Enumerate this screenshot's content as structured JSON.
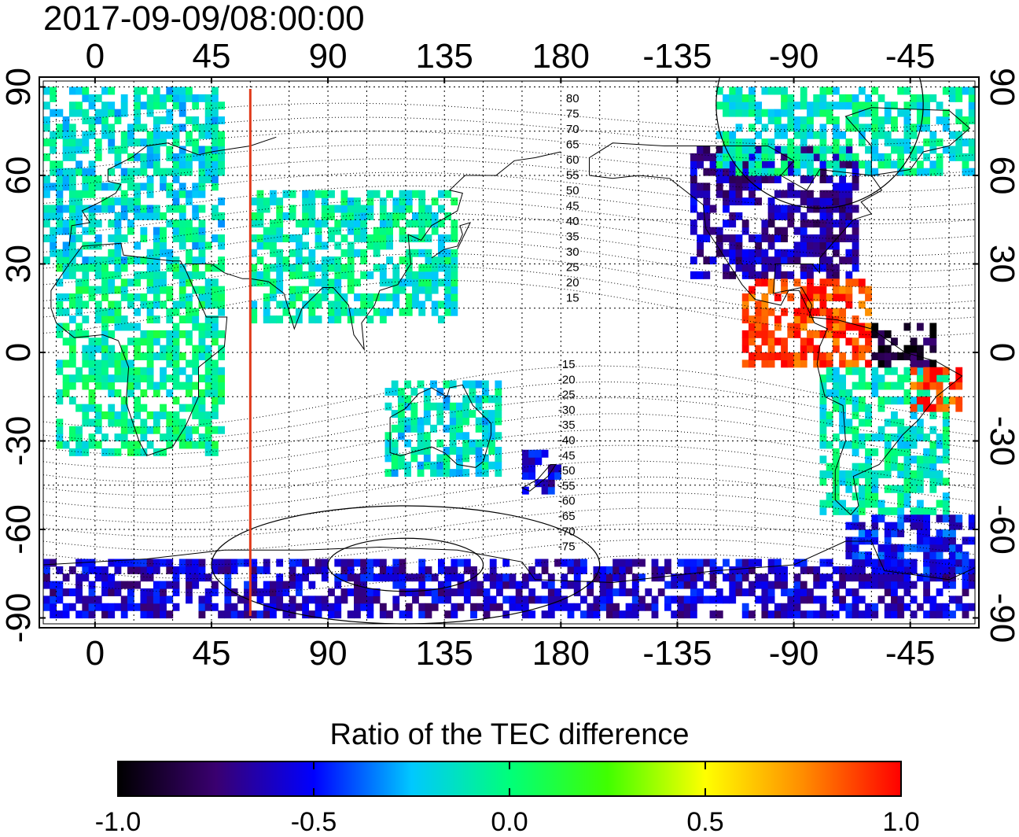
{
  "title": "2017-09-09/08:00:00",
  "chart_data": {
    "type": "heatmap",
    "title": "2017-09-09/08:00:00",
    "projection": "equirectangular",
    "x_ticks": [
      "0",
      "45",
      "90",
      "135",
      "180",
      "-135",
      "-90",
      "-45"
    ],
    "x_tick_values": [
      0,
      45,
      90,
      135,
      180,
      225,
      270,
      315
    ],
    "xlim": [
      -20,
      340
    ],
    "y_ticks": [
      "90",
      "60",
      "30",
      "0",
      "-30",
      "-60",
      "-90"
    ],
    "y_tick_values": [
      90,
      60,
      30,
      0,
      -30,
      -60,
      -90
    ],
    "ylim": [
      -92,
      92
    ],
    "grid": true,
    "marker_longitude": 60,
    "marker_color": "#e03a1a",
    "contour_labels_north": [
      "80",
      "75",
      "70",
      "65",
      "60",
      "55",
      "50",
      "45",
      "40",
      "35",
      "30",
      "25",
      "20",
      "15"
    ],
    "contour_labels_south": [
      "-15",
      "-20",
      "-25",
      "-30",
      "-35",
      "-40",
      "-45",
      "-50",
      "-55",
      "-60",
      "-65",
      "-70",
      "-75"
    ],
    "colorbar": {
      "label": "Ratio of the TEC difference",
      "min": -1.0,
      "max": 1.0,
      "ticks": [
        "-1.0",
        "-0.5",
        "0.0",
        "0.5",
        "1.0"
      ],
      "tick_values": [
        -1.0,
        -0.5,
        0.0,
        0.5,
        1.0
      ],
      "colors": [
        "#000000",
        "#3a0070",
        "#0000ff",
        "#00c8ff",
        "#00ff7a",
        "#40ff00",
        "#ffff00",
        "#ff8c00",
        "#ff0000"
      ]
    },
    "regions": [
      {
        "name": "europe",
        "lon": [
          -20,
          50
        ],
        "lat": [
          30,
          88
        ],
        "value": -0.15
      },
      {
        "name": "africa",
        "lon": [
          -15,
          50
        ],
        "lat": [
          -35,
          30
        ],
        "value": -0.05
      },
      {
        "name": "asia",
        "lon": [
          60,
          140
        ],
        "lat": [
          10,
          55
        ],
        "value": -0.1
      },
      {
        "name": "australia",
        "lon": [
          112,
          155
        ],
        "lat": [
          -42,
          -10
        ],
        "value": -0.15
      },
      {
        "name": "new-zealand",
        "lon": [
          165,
          180
        ],
        "lat": [
          -48,
          -35
        ],
        "value": -0.55
      },
      {
        "name": "north-america",
        "lon": [
          230,
          295
        ],
        "lat": [
          25,
          70
        ],
        "value": -0.65
      },
      {
        "name": "arctic-america",
        "lon": [
          240,
          340
        ],
        "lat": [
          60,
          88
        ],
        "value": -0.1
      },
      {
        "name": "central-america",
        "lon": [
          250,
          300
        ],
        "lat": [
          -5,
          25
        ],
        "value": 0.9
      },
      {
        "name": "south-america",
        "lon": [
          280,
          330
        ],
        "lat": [
          -55,
          -5
        ],
        "value": -0.1
      },
      {
        "name": "brazil-north",
        "lon": [
          300,
          325
        ],
        "lat": [
          -5,
          10
        ],
        "value": -0.9
      },
      {
        "name": "brazil-east",
        "lon": [
          315,
          335
        ],
        "lat": [
          -20,
          -5
        ],
        "value": 0.9
      },
      {
        "name": "antarctica",
        "lon": [
          -20,
          340
        ],
        "lat": [
          -90,
          -70
        ],
        "value": -0.6
      },
      {
        "name": "south-atlantic",
        "lon": [
          290,
          340
        ],
        "lat": [
          -75,
          -55
        ],
        "value": -0.5
      }
    ]
  }
}
